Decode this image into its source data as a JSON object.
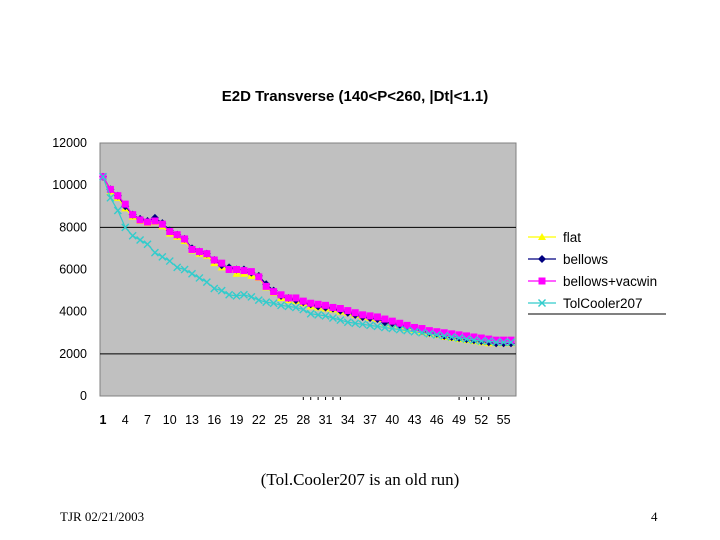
{
  "chart_data": {
    "type": "line",
    "title": "E2D Transverse   (140<P<260, |Dt|<1.1)",
    "xlabel": "",
    "ylabel": "",
    "ylim": [
      0,
      12000
    ],
    "yticks": [
      0,
      2000,
      4000,
      6000,
      8000,
      10000,
      12000
    ],
    "x": [
      1,
      2,
      3,
      4,
      5,
      6,
      7,
      8,
      9,
      10,
      11,
      12,
      13,
      14,
      15,
      16,
      17,
      18,
      19,
      20,
      21,
      22,
      23,
      24,
      25,
      26,
      27,
      28,
      29,
      30,
      31,
      32,
      33,
      34,
      35,
      36,
      37,
      38,
      39,
      40,
      41,
      42,
      43,
      44,
      45,
      46,
      47,
      48,
      49,
      50,
      51,
      52,
      53,
      54,
      55,
      56
    ],
    "xticks": [
      1,
      4,
      7,
      10,
      13,
      16,
      19,
      22,
      25,
      28,
      31,
      34,
      37,
      40,
      43,
      46,
      49,
      52,
      55
    ],
    "grid": "horizontal major gridlines at 8000 and 2000",
    "legend_position": "right",
    "series": [
      {
        "name": "flat",
        "color": "#ffff00",
        "marker": "triangle",
        "values": [
          10400,
          9700,
          9400,
          8900,
          8500,
          8300,
          8200,
          8250,
          8050,
          7700,
          7550,
          7350,
          6900,
          6750,
          6650,
          6300,
          6100,
          6000,
          5800,
          5800,
          5700,
          5600,
          5150,
          4900,
          4650,
          4550,
          4500,
          4400,
          4250,
          4200,
          4150,
          4100,
          4000,
          3950,
          3850,
          3750,
          3700,
          3650,
          3450,
          3400,
          3300,
          3200,
          3150,
          3050,
          2950,
          2900,
          2800,
          2750,
          2700,
          2650,
          2600,
          2550,
          2500,
          2500,
          2500,
          2500
        ]
      },
      {
        "name": "bellows",
        "color": "#000080",
        "marker": "diamond",
        "values": [
          10400,
          9800,
          9500,
          9000,
          8600,
          8400,
          8300,
          8450,
          8200,
          7850,
          7650,
          7450,
          7000,
          6850,
          6750,
          6450,
          6200,
          6100,
          6000,
          6000,
          5850,
          5700,
          5300,
          5000,
          4750,
          4650,
          4550,
          4450,
          4350,
          4250,
          4200,
          4150,
          4050,
          3950,
          3850,
          3750,
          3700,
          3650,
          3500,
          3450,
          3350,
          3250,
          3200,
          3100,
          3000,
          2950,
          2850,
          2800,
          2750,
          2700,
          2650,
          2600,
          2550,
          2500,
          2500,
          2500
        ]
      },
      {
        "name": "bellows+vacwin",
        "color": "#ff00ff",
        "marker": "square",
        "values": [
          10400,
          9800,
          9500,
          9100,
          8600,
          8350,
          8250,
          8300,
          8150,
          7800,
          7650,
          7450,
          6950,
          6850,
          6750,
          6450,
          6300,
          6000,
          6000,
          5950,
          5900,
          5650,
          5200,
          4950,
          4800,
          4650,
          4650,
          4500,
          4400,
          4350,
          4300,
          4200,
          4150,
          4050,
          3950,
          3850,
          3800,
          3750,
          3650,
          3550,
          3450,
          3350,
          3250,
          3200,
          3100,
          3050,
          3000,
          2950,
          2900,
          2850,
          2800,
          2750,
          2700,
          2650,
          2650,
          2650
        ]
      },
      {
        "name": "TolCooler207",
        "color": "#33cccc",
        "marker": "x",
        "values": [
          10400,
          9400,
          8800,
          8000,
          7600,
          7400,
          7200,
          6800,
          6600,
          6400,
          6100,
          6000,
          5800,
          5600,
          5400,
          5100,
          5000,
          4800,
          4750,
          4800,
          4700,
          4550,
          4450,
          4400,
          4300,
          4250,
          4200,
          4100,
          3900,
          3850,
          3800,
          3700,
          3600,
          3500,
          3450,
          3400,
          3350,
          3300,
          3250,
          3200,
          3150,
          3100,
          3050,
          3000,
          2950,
          2900,
          2850,
          2800,
          2750,
          2700,
          2650,
          2600,
          2600,
          2550,
          2550,
          2550
        ]
      }
    ],
    "colors": {
      "plot_background": "#c0c0c0",
      "gridline": "#000000"
    }
  },
  "caption": "(Tol.Cooler207 is an old run)",
  "footer": {
    "author_date": "TJR  02/21/2003",
    "page_number": "4"
  }
}
